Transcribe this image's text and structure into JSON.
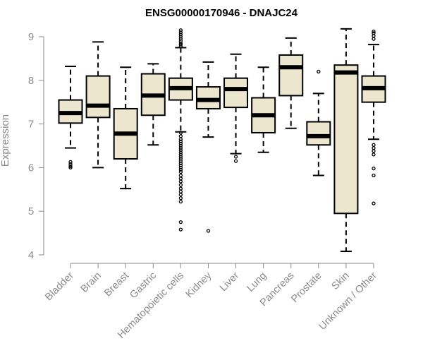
{
  "chart_data": {
    "type": "boxplot",
    "title": "ENSG00000170946 - DNAJC24",
    "xlabel": "",
    "ylabel": "Expression",
    "ylim": [
      4,
      9
    ],
    "yticks": [
      4,
      5,
      6,
      7,
      8,
      9
    ],
    "colors": {
      "box_fill": "#ede6cf",
      "box_stroke": "#000000",
      "axis": "#8a8a8a"
    },
    "categories": [
      "Bladder",
      "Brain",
      "Breast",
      "Gastric",
      "Hematopoietic cells",
      "Kidney",
      "Liver",
      "Lung",
      "Pancreas",
      "Prostate",
      "Skin",
      "Unknown / Other"
    ],
    "boxes": [
      {
        "name": "Bladder",
        "whisker_low": 6.45,
        "q1": 7.02,
        "median": 7.25,
        "q3": 7.55,
        "whisker_high": 8.32,
        "outliers": [
          6.13,
          6.08,
          6.03,
          6.0
        ]
      },
      {
        "name": "Brain",
        "whisker_low": 6.0,
        "q1": 7.15,
        "median": 7.42,
        "q3": 8.1,
        "whisker_high": 8.88,
        "outliers": []
      },
      {
        "name": "Breast",
        "whisker_low": 5.52,
        "q1": 6.2,
        "median": 6.78,
        "q3": 7.35,
        "whisker_high": 8.3,
        "outliers": []
      },
      {
        "name": "Gastric",
        "whisker_low": 6.52,
        "q1": 7.2,
        "median": 7.65,
        "q3": 8.15,
        "whisker_high": 8.38,
        "outliers": []
      },
      {
        "name": "Hematopoietic cells",
        "whisker_low": 6.82,
        "q1": 7.55,
        "median": 7.82,
        "q3": 8.05,
        "whisker_high": 8.75,
        "outliers": [
          9.15,
          9.1,
          9.05,
          9.0,
          8.95,
          8.9,
          8.85,
          8.82,
          8.78,
          6.8,
          6.72,
          6.65,
          6.6,
          6.55,
          6.5,
          6.45,
          6.4,
          6.35,
          6.3,
          6.25,
          6.2,
          6.15,
          6.1,
          6.05,
          6.0,
          5.95,
          5.9,
          5.82,
          5.75,
          5.68,
          5.6,
          5.52,
          5.45,
          5.38,
          5.3,
          5.22,
          4.75,
          4.58
        ]
      },
      {
        "name": "Kidney",
        "whisker_low": 6.7,
        "q1": 7.35,
        "median": 7.55,
        "q3": 7.85,
        "whisker_high": 8.42,
        "outliers": [
          4.55
        ]
      },
      {
        "name": "Liver",
        "whisker_low": 6.32,
        "q1": 7.38,
        "median": 7.8,
        "q3": 8.05,
        "whisker_high": 8.6,
        "outliers": [
          6.25,
          6.15
        ]
      },
      {
        "name": "Lung",
        "whisker_low": 6.35,
        "q1": 6.8,
        "median": 7.2,
        "q3": 7.6,
        "whisker_high": 8.3,
        "outliers": []
      },
      {
        "name": "Pancreas",
        "whisker_low": 6.9,
        "q1": 7.65,
        "median": 8.3,
        "q3": 8.58,
        "whisker_high": 8.97,
        "outliers": []
      },
      {
        "name": "Prostate",
        "whisker_low": 5.82,
        "q1": 6.52,
        "median": 6.72,
        "q3": 7.05,
        "whisker_high": 7.7,
        "outliers": [
          8.2
        ]
      },
      {
        "name": "Skin",
        "whisker_low": 4.08,
        "q1": 4.95,
        "median": 8.18,
        "q3": 8.35,
        "whisker_high": 9.18,
        "outliers": []
      },
      {
        "name": "Unknown / Other",
        "whisker_low": 6.65,
        "q1": 7.5,
        "median": 7.82,
        "q3": 8.1,
        "whisker_high": 8.82,
        "outliers": [
          9.12,
          9.08,
          9.02,
          8.95,
          6.52,
          6.45,
          6.38,
          6.3,
          5.98,
          5.82,
          5.18
        ]
      }
    ]
  }
}
